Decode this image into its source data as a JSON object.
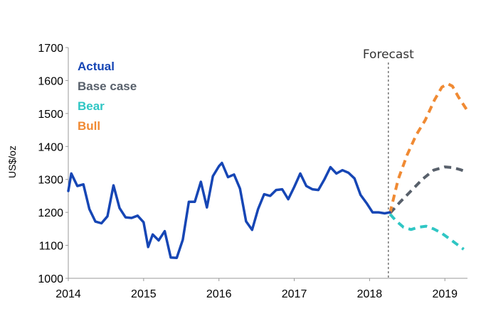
{
  "chart_data": {
    "type": "line",
    "title": "",
    "xlabel": "",
    "ylabel": "US$/oz",
    "ylim": [
      1000,
      1700
    ],
    "xlim": [
      2014.0,
      2019.3
    ],
    "yticks": [
      1000,
      1100,
      1200,
      1300,
      1400,
      1500,
      1600,
      1700
    ],
    "xticks": [
      2014,
      2015,
      2016,
      2017,
      2018,
      2019
    ],
    "grid": false,
    "legend_position": "top-left",
    "forecast_start": 2018.25,
    "annotation": "Forecast",
    "series": [
      {
        "name": "Actual",
        "color": "#1646b5",
        "style": "solid",
        "x": [
          2014.0,
          2014.04,
          2014.12,
          2014.2,
          2014.28,
          2014.36,
          2014.44,
          2014.52,
          2014.6,
          2014.68,
          2014.76,
          2014.84,
          2014.92,
          2015.0,
          2015.06,
          2015.12,
          2015.2,
          2015.28,
          2015.36,
          2015.44,
          2015.52,
          2015.6,
          2015.68,
          2015.76,
          2015.84,
          2015.92,
          2016.0,
          2016.04,
          2016.12,
          2016.2,
          2016.28,
          2016.36,
          2016.44,
          2016.52,
          2016.6,
          2016.68,
          2016.76,
          2016.84,
          2016.92,
          2017.0,
          2017.08,
          2017.16,
          2017.24,
          2017.32,
          2017.4,
          2017.48,
          2017.56,
          2017.64,
          2017.72,
          2017.8,
          2017.88,
          2017.96,
          2018.04,
          2018.12,
          2018.2,
          2018.27
        ],
        "values": [
          1265,
          1318,
          1280,
          1285,
          1210,
          1172,
          1167,
          1188,
          1282,
          1213,
          1185,
          1183,
          1190,
          1170,
          1095,
          1133,
          1115,
          1143,
          1063,
          1062,
          1117,
          1232,
          1232,
          1293,
          1215,
          1310,
          1340,
          1350,
          1307,
          1315,
          1272,
          1173,
          1147,
          1210,
          1255,
          1250,
          1268,
          1270,
          1240,
          1277,
          1318,
          1280,
          1270,
          1268,
          1300,
          1337,
          1318,
          1328,
          1320,
          1303,
          1253,
          1228,
          1200,
          1200,
          1197,
          1200
        ]
      },
      {
        "name": "Base case",
        "color": "#58606b",
        "style": "dashed",
        "x": [
          2018.27,
          2018.4,
          2018.55,
          2018.7,
          2018.85,
          2019.0,
          2019.1,
          2019.2,
          2019.3
        ],
        "values": [
          1197,
          1230,
          1265,
          1300,
          1328,
          1338,
          1336,
          1330,
          1322
        ]
      },
      {
        "name": "Bear",
        "color": "#2fc6c4",
        "style": "dashed",
        "x": [
          2018.27,
          2018.35,
          2018.45,
          2018.55,
          2018.65,
          2018.75,
          2018.85,
          2018.95,
          2019.05,
          2019.15,
          2019.25
        ],
        "values": [
          1195,
          1175,
          1155,
          1148,
          1155,
          1158,
          1150,
          1138,
          1122,
          1105,
          1088
        ]
      },
      {
        "name": "Bull",
        "color": "#f08a33",
        "style": "dashed",
        "x": [
          2018.27,
          2018.38,
          2018.5,
          2018.62,
          2018.74,
          2018.86,
          2018.96,
          2019.04,
          2019.1,
          2019.18,
          2019.3
        ],
        "values": [
          1197,
          1300,
          1375,
          1435,
          1480,
          1540,
          1580,
          1590,
          1583,
          1550,
          1508
        ]
      }
    ]
  }
}
